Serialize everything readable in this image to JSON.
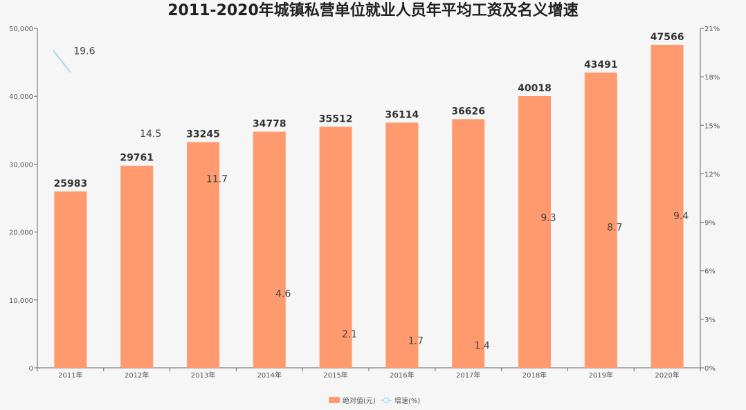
{
  "chart_data": {
    "type": "bar",
    "title": "2011-2020年城镇私营单位就业人员年平均工资及名义增速",
    "categories": [
      "2011年",
      "2012年",
      "2013年",
      "2014年",
      "2015年",
      "2016年",
      "2017年",
      "2018年",
      "2019年",
      "2020年"
    ],
    "series": [
      {
        "name": "绝对值(元)",
        "type": "bar",
        "axis": "left",
        "color": "#ff9a6e",
        "values": [
          25983,
          29761,
          33245,
          34778,
          35512,
          36114,
          36626,
          40018,
          43491,
          47566
        ]
      },
      {
        "name": "增速(%)",
        "type": "line",
        "axis": "right",
        "color": "#a9d8f5",
        "values": [
          19.6,
          14.5,
          11.7,
          4.6,
          2.1,
          1.7,
          1.4,
          9.3,
          8.7,
          9.4
        ]
      }
    ],
    "y_left": {
      "ticks": [
        0,
        10000,
        20000,
        30000,
        40000,
        50000
      ],
      "tick_labels": [
        "0",
        "10,000",
        "20,000",
        "30,000",
        "40,000",
        "50,000"
      ],
      "range": [
        0,
        50000
      ]
    },
    "y_right": {
      "ticks": [
        0,
        3,
        6,
        9,
        12,
        15,
        18,
        21
      ],
      "tick_labels": [
        "0%",
        "3%",
        "6%",
        "9%",
        "12%",
        "15%",
        "18%",
        "21%"
      ],
      "range": [
        0,
        21
      ]
    },
    "legend": {
      "position": "bottom-center"
    },
    "grid": false
  }
}
